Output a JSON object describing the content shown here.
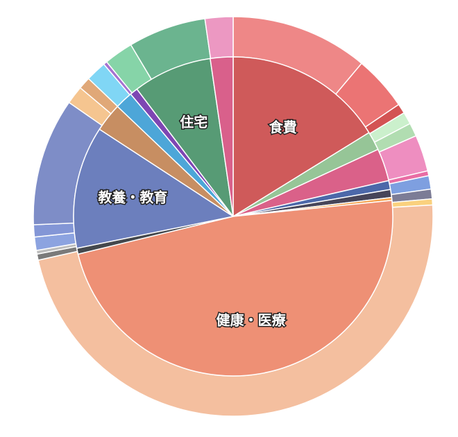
{
  "chart_data": {
    "type": "pie",
    "start_angle_deg": 0,
    "inner_ring": [
      {
        "label": "食費",
        "value": 16.2,
        "color": "#CF5A5A"
      },
      {
        "label": "",
        "value": 1.9,
        "color": "#96C597"
      },
      {
        "label": "",
        "value": 3.3,
        "color": "#DA6189"
      },
      {
        "label": "",
        "value": 0.9,
        "color": "#4C68A9"
      },
      {
        "label": "",
        "value": 0.8,
        "color": "#474559"
      },
      {
        "label": "",
        "value": 0.3,
        "color": "#F5A14C"
      },
      {
        "label": "健康・医療",
        "value": 47.8,
        "color": "#EE9075"
      },
      {
        "label": "",
        "value": 0.6,
        "color": "#44484D"
      },
      {
        "label": "教養・教育",
        "value": 12.4,
        "color": "#6C7FBD"
      },
      {
        "label": "",
        "value": 2.9,
        "color": "#C78E62"
      },
      {
        "label": "",
        "value": 1.8,
        "color": "#4DA6D8"
      },
      {
        "label": "",
        "value": 0.8,
        "color": "#7E46B3"
      },
      {
        "label": "住宅",
        "value": 8.0,
        "color": "#579B75"
      },
      {
        "label": "",
        "value": 2.3,
        "color": "#D9608B"
      }
    ],
    "outer_ring": [
      {
        "value": 11.3,
        "color": "#EE8787",
        "group": "食費"
      },
      {
        "value": 4.5,
        "color": "#EB7474",
        "group": "食費"
      },
      {
        "value": 0.8,
        "color": "#D35353",
        "group": "食費"
      },
      {
        "value": 1.0,
        "color": "#CBF0CC",
        "group": "other"
      },
      {
        "value": 1.1,
        "color": "#B1DDB1",
        "group": "other"
      },
      {
        "value": 3.0,
        "color": "#EE8EC0",
        "group": "other"
      },
      {
        "value": 0.4,
        "color": "#E96DA4",
        "group": "other"
      },
      {
        "value": 1.1,
        "color": "#7E9FE0",
        "group": "other"
      },
      {
        "value": 0.8,
        "color": "#7C7C96",
        "group": "other"
      },
      {
        "value": 0.5,
        "color": "#FAD17E",
        "group": "other"
      },
      {
        "value": 48.2,
        "color": "#F4BF9F",
        "group": "健康・医療"
      },
      {
        "value": 0.5,
        "color": "#7A7A7A",
        "group": "other"
      },
      {
        "value": 0.3,
        "color": "#BDBDBD",
        "group": "other"
      },
      {
        "value": 1.1,
        "color": "#8CA3E0",
        "group": "教養・教育"
      },
      {
        "value": 1.0,
        "color": "#8396D6",
        "group": "教養・教育"
      },
      {
        "value": 10.5,
        "color": "#7E8DC7",
        "group": "教養・教育"
      },
      {
        "value": 1.5,
        "color": "#F5C590",
        "group": "other"
      },
      {
        "value": 1.0,
        "color": "#E0A878",
        "group": "other"
      },
      {
        "value": 1.7,
        "color": "#80D6F5",
        "group": "other"
      },
      {
        "value": 0.3,
        "color": "#A572D0",
        "group": "other"
      },
      {
        "value": 2.4,
        "color": "#86D4A8",
        "group": "住宅"
      },
      {
        "value": 6.4,
        "color": "#6BB48F",
        "group": "住宅"
      },
      {
        "value": 2.3,
        "color": "#EC98C2",
        "group": "other"
      }
    ]
  }
}
